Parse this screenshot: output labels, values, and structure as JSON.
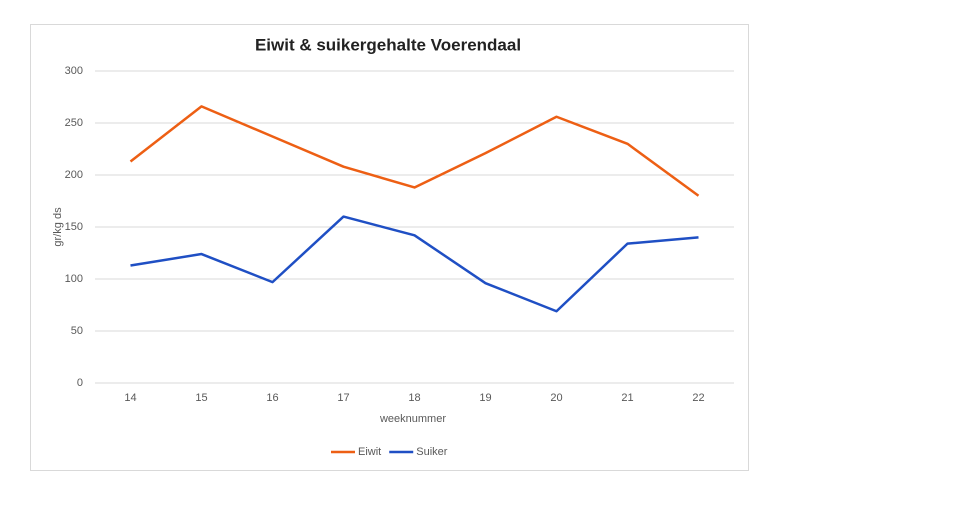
{
  "chart_data": {
    "type": "line",
    "title": "Eiwit & suikergehalte Voerendaal",
    "x_label": "weeknummer",
    "y_label": "gr/kg ds",
    "categories": [
      "14",
      "15",
      "16",
      "17",
      "18",
      "19",
      "20",
      "21",
      "22"
    ],
    "series": [
      {
        "name": "Eiwit",
        "color": "#ed5f14",
        "values": [
          213,
          266,
          237,
          208,
          188,
          221,
          256,
          230,
          180
        ]
      },
      {
        "name": "Suiker",
        "color": "#1f4fc4",
        "values": [
          113,
          124,
          97,
          160,
          142,
          96,
          69,
          134,
          140
        ]
      }
    ],
    "ylim": [
      0,
      300
    ],
    "yticks": [
      0,
      50,
      100,
      150,
      200,
      250,
      300
    ],
    "grid": true,
    "legend": "bottom"
  }
}
